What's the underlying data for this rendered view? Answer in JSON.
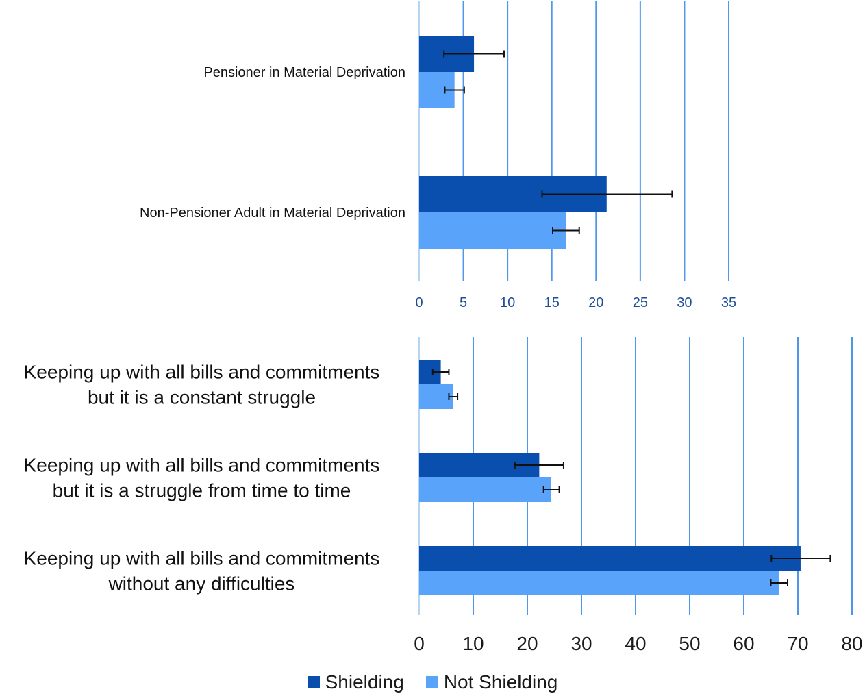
{
  "chart_data": [
    {
      "type": "bar",
      "orientation": "horizontal",
      "categories": [
        "Pensioner in Material Deprivation",
        "Non-Pensioner Adult in Material Deprivation"
      ],
      "series": [
        {
          "name": "Shielding",
          "values": [
            6.2,
            21.2
          ],
          "error_low": [
            2.8,
            13.9
          ],
          "error_high": [
            9.6,
            28.6
          ]
        },
        {
          "name": "Not Shielding",
          "values": [
            4.0,
            16.6
          ],
          "error_low": [
            2.9,
            15.1
          ],
          "error_high": [
            5.1,
            18.1
          ]
        }
      ],
      "xticks": [
        "0",
        "5",
        "10",
        "15",
        "20",
        "25",
        "30",
        "35"
      ],
      "xlim": [
        0,
        35
      ],
      "grid": true
    },
    {
      "type": "bar",
      "orientation": "horizontal",
      "categories": [
        [
          "Keeping up with all bills and commitments",
          "but it is a constant struggle"
        ],
        [
          "Keeping up with all bills and commitments",
          "but it is a struggle from time to time"
        ],
        [
          "Keeping up with all bills and commitments",
          "without any difficulties"
        ]
      ],
      "series": [
        {
          "name": "Shielding",
          "values": [
            4.0,
            22.2,
            70.5
          ],
          "error_low": [
            2.5,
            17.7,
            65.1
          ],
          "error_high": [
            5.5,
            26.7,
            76.0
          ]
        },
        {
          "name": "Not Shielding",
          "values": [
            6.3,
            24.4,
            66.5
          ],
          "error_low": [
            5.5,
            23.0,
            65.0
          ],
          "error_high": [
            7.1,
            25.9,
            68.1
          ]
        }
      ],
      "xticks": [
        "0",
        "10",
        "20",
        "30",
        "40",
        "50",
        "60",
        "70",
        "80"
      ],
      "xlim": [
        0,
        80
      ],
      "grid": true
    }
  ],
  "legend": {
    "items": [
      {
        "label": "Shielding",
        "color": "#0a4fad"
      },
      {
        "label": "Not Shielding",
        "color": "#5aa3fb"
      }
    ]
  },
  "colors": {
    "shielding": "#0a4fad",
    "not_shielding": "#5aa3fb",
    "grid": "#4f97ea",
    "axis": "#b8d4f3",
    "tick_top": "#1f4e99",
    "tick_bottom": "#1a1a1a"
  }
}
